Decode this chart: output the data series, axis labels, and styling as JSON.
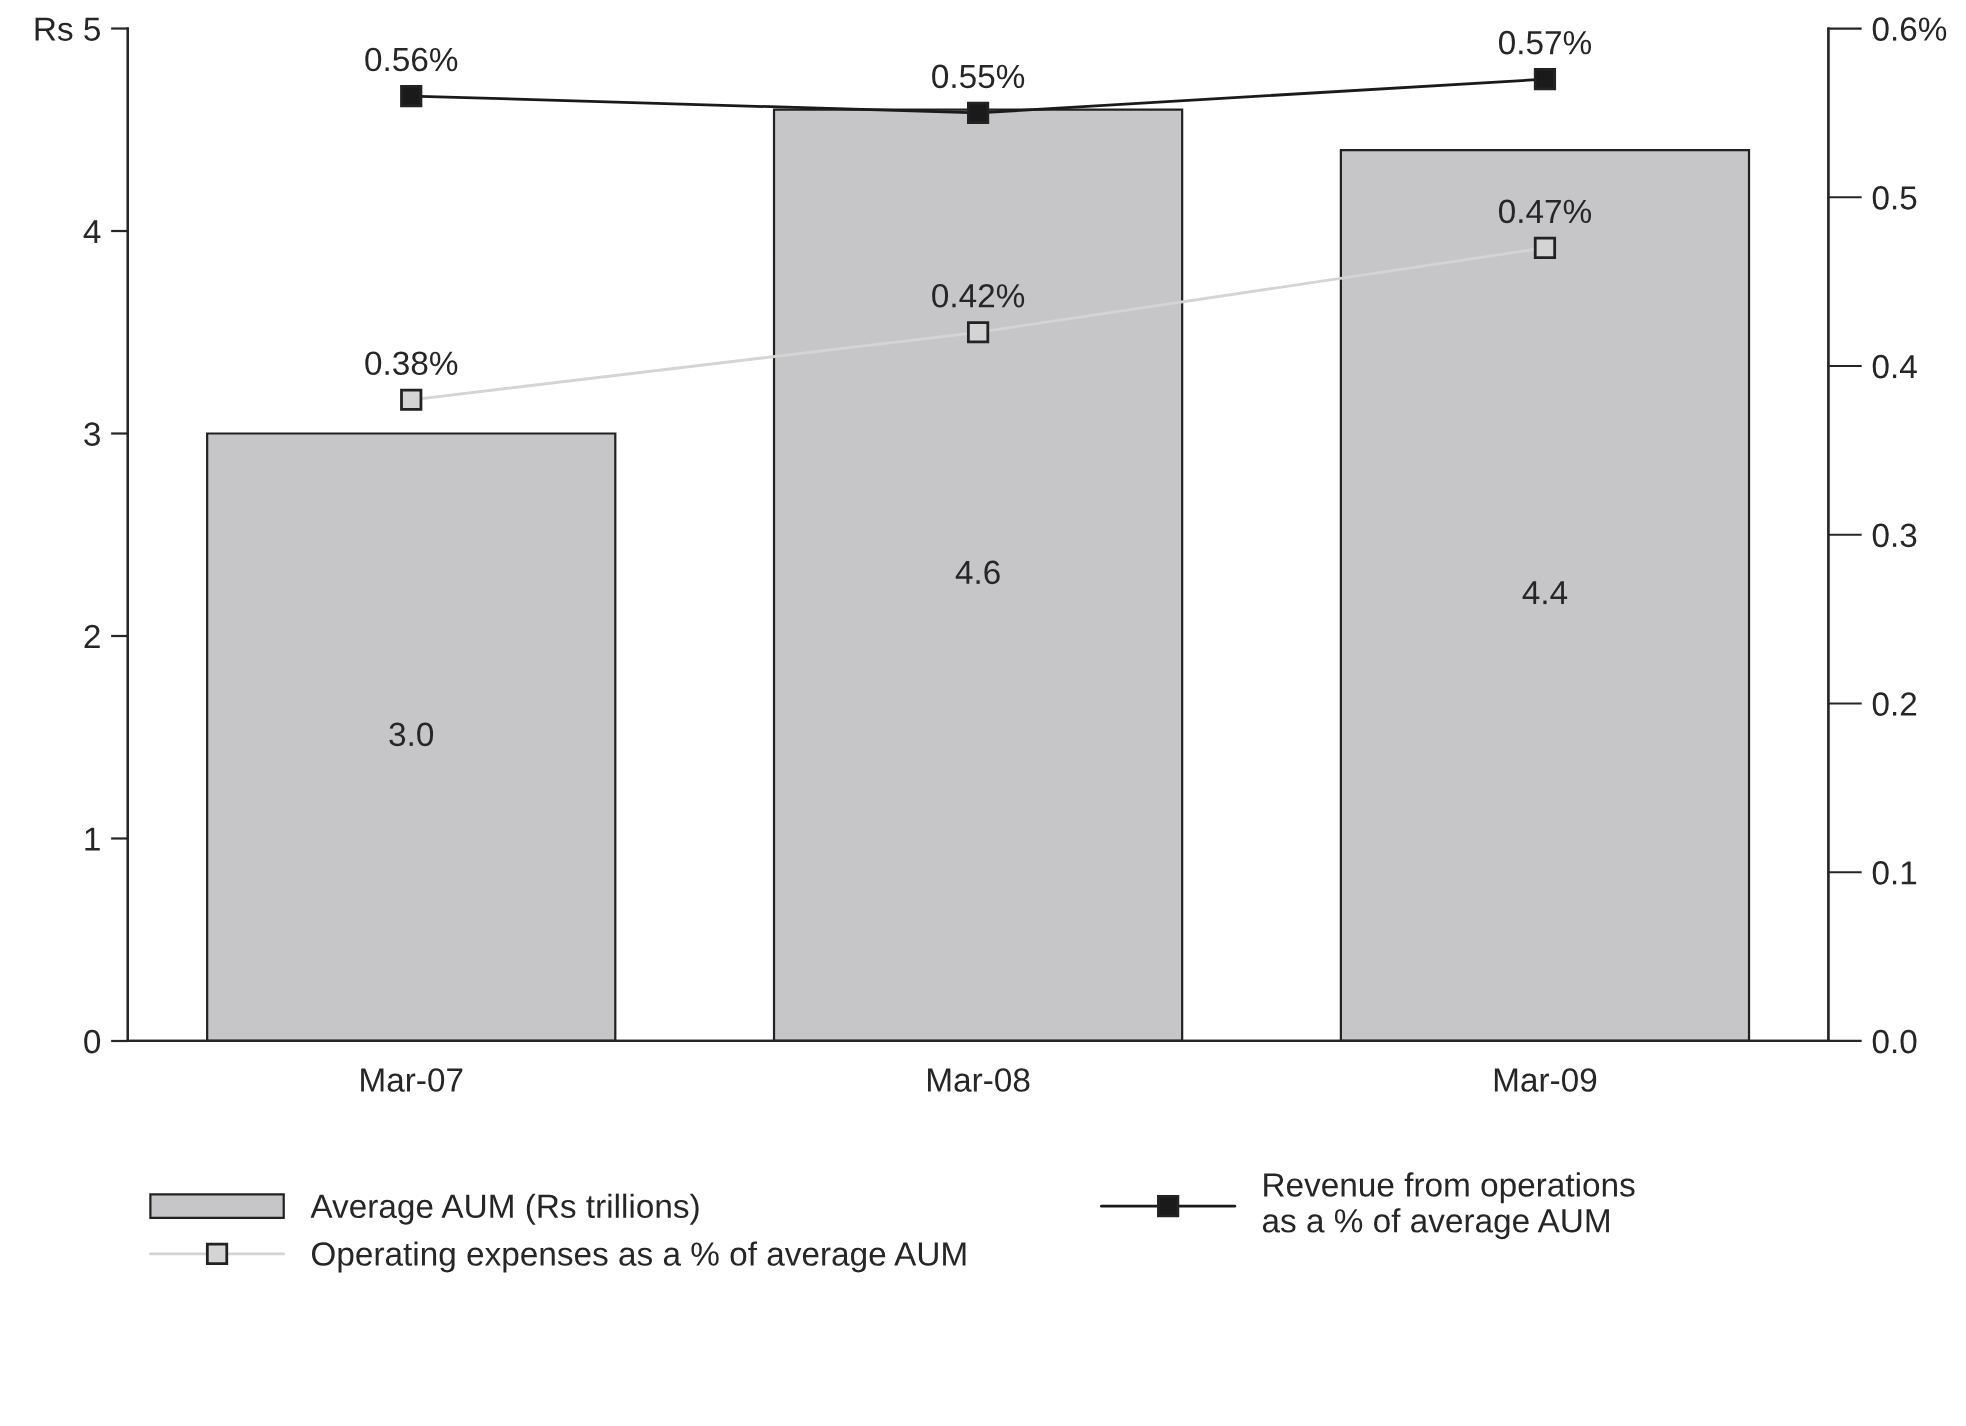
{
  "chart_data": {
    "type": "bar",
    "categories": [
      "Mar-07",
      "Mar-08",
      "Mar-09"
    ],
    "series": [
      {
        "name": "Average AUM (Rs trillions)",
        "color": "#c6c6c8",
        "values": [
          3.0,
          4.6,
          4.4
        ],
        "value_labels": [
          "3.0",
          "4.6",
          "4.4"
        ]
      },
      {
        "name": "Revenue from operations\nas a % of average AUM",
        "type": "line",
        "axis": "y2",
        "color": "#1a1a1a",
        "values": [
          0.56,
          0.55,
          0.57
        ],
        "value_labels": [
          "0.56%",
          "0.55%",
          "0.57%"
        ]
      },
      {
        "name": "Operating expenses as a % of average AUM",
        "type": "line",
        "axis": "y2",
        "color": "#d4d4d4",
        "values": [
          0.38,
          0.42,
          0.47
        ],
        "value_labels": [
          "0.38%",
          "0.42%",
          "0.47%"
        ]
      }
    ],
    "ylim": [
      0,
      5
    ],
    "yticks": [
      0,
      1,
      2,
      3,
      4,
      {
        "value": 5,
        "label": "Rs 5"
      }
    ],
    "y2lim": [
      0,
      0.6
    ],
    "y2ticks": [
      {
        "value": 0,
        "label": "0.0"
      },
      0.1,
      0.2,
      0.3,
      0.4,
      0.5,
      {
        "value": 0.6,
        "label": "0.6%"
      }
    ],
    "marker": "square",
    "grid": false,
    "legend": "bottom"
  }
}
